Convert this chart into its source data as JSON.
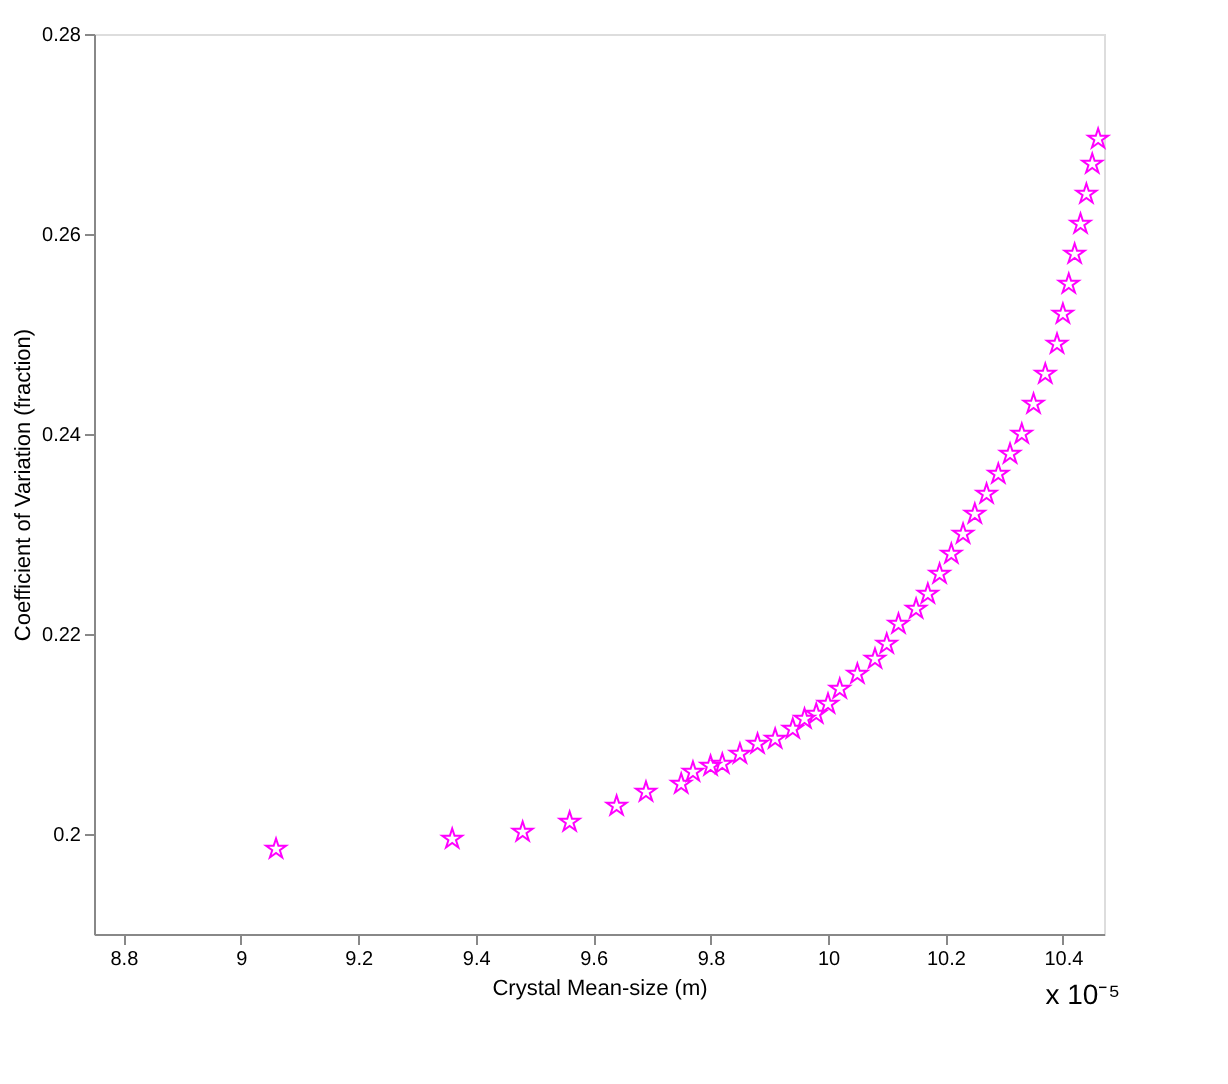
{
  "chart_data": {
    "type": "scatter",
    "xlabel": "Crystal Mean-size (m)",
    "ylabel": "Coefficient of Variation (fraction)",
    "annotations": [
      "x 10⁻⁵"
    ],
    "x": [
      9.06,
      9.36,
      9.48,
      9.56,
      9.64,
      9.69,
      9.75,
      9.77,
      9.8,
      9.82,
      9.85,
      9.88,
      9.91,
      9.94,
      9.96,
      9.98,
      10.0,
      10.02,
      10.05,
      10.08,
      10.1,
      10.12,
      10.15,
      10.17,
      10.19,
      10.21,
      10.23,
      10.25,
      10.27,
      10.29,
      10.31,
      10.33,
      10.35,
      10.37,
      10.39,
      10.4,
      10.41,
      10.42,
      10.43,
      10.44,
      10.45,
      10.46
    ],
    "series": [
      {
        "color": "#ff00ff",
        "values": [
          0.1985,
          0.1995,
          0.2002,
          0.2012,
          0.2028,
          0.2042,
          0.205,
          0.2062,
          0.2068,
          0.207,
          0.208,
          0.209,
          0.2095,
          0.2105,
          0.2115,
          0.212,
          0.213,
          0.2145,
          0.216,
          0.2175,
          0.219,
          0.221,
          0.2225,
          0.224,
          0.226,
          0.228,
          0.23,
          0.232,
          0.234,
          0.236,
          0.238,
          0.24,
          0.243,
          0.246,
          0.249,
          0.252,
          0.255,
          0.258,
          0.261,
          0.264,
          0.267,
          0.2695
        ]
      }
    ],
    "xlim": [
      8.75,
      10.47
    ],
    "ylim": [
      0.19,
      0.28
    ],
    "xticks": [
      8.8,
      9,
      9.2,
      9.4,
      9.6,
      9.8,
      10,
      10.2,
      10.4
    ],
    "yticks": [
      0.2,
      0.22,
      0.24,
      0.26,
      0.28
    ],
    "marker": "star",
    "grid": false
  }
}
